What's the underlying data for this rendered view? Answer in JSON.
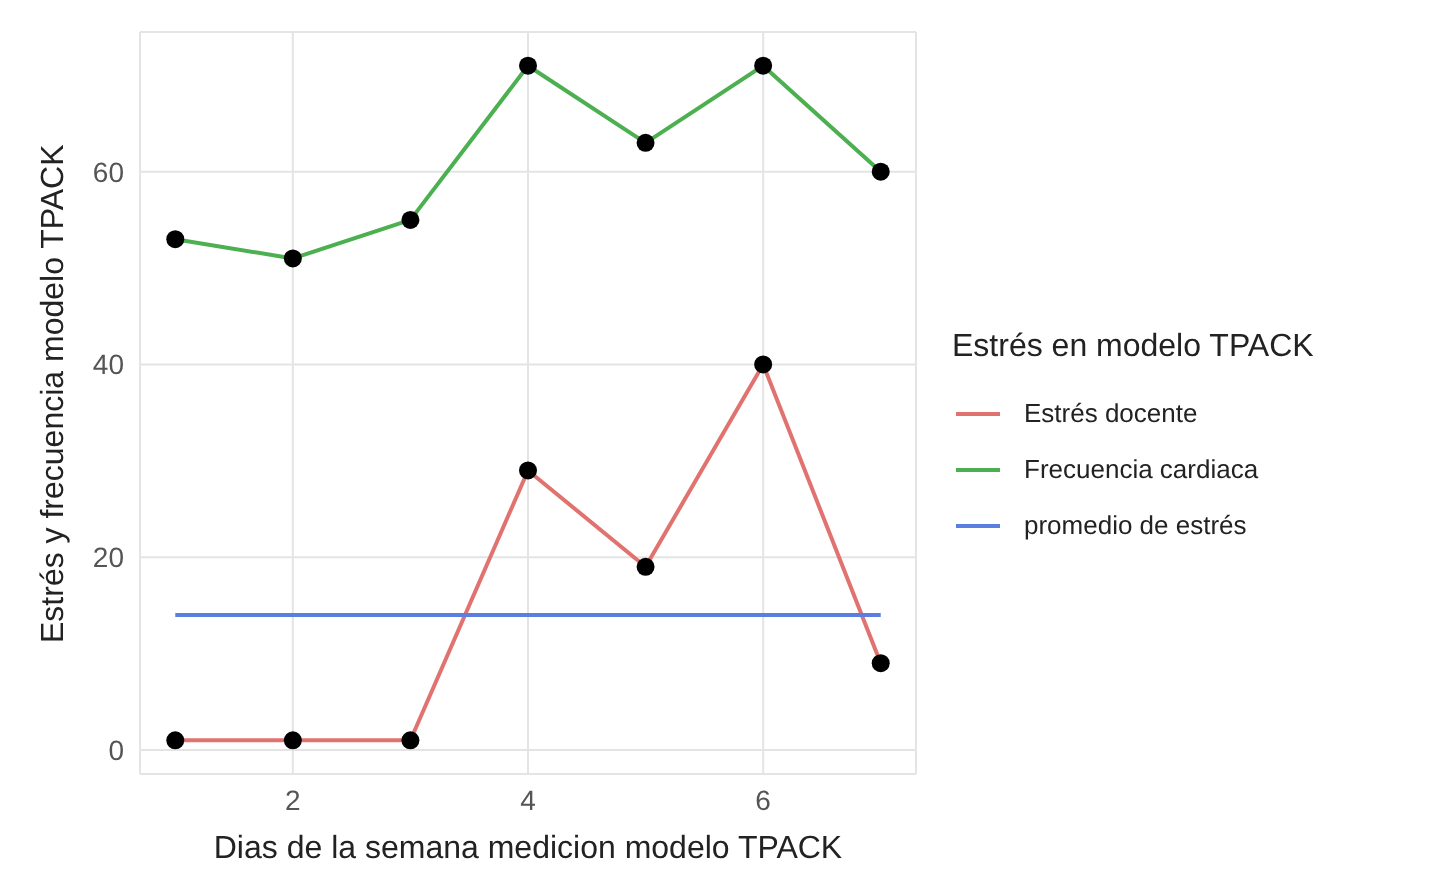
{
  "chart_data": {
    "type": "line",
    "xlabel": "Dias de la semana medicion modelo TPACK",
    "ylabel": "Estrés y frecuencia modelo TPACK",
    "legend_title": "Estrés en modelo TPACK",
    "x": [
      1,
      2,
      3,
      4,
      5,
      6,
      7
    ],
    "series": [
      {
        "name": "Estrés docente",
        "color": "#e0736f",
        "values": [
          1,
          1,
          1,
          29,
          19,
          40,
          9
        ],
        "marker": "circle"
      },
      {
        "name": "Frecuencia cardiaca",
        "color": "#4caf50",
        "values": [
          53,
          51,
          55,
          71,
          63,
          71,
          60
        ],
        "marker": "circle"
      },
      {
        "name": "promedio de estrés",
        "color": "#5b7fe0",
        "values": [
          14,
          14,
          14,
          14,
          14,
          14,
          14
        ],
        "marker": "none"
      }
    ],
    "xlim": [
      0.7,
      7.3
    ],
    "ylim": [
      -2.5,
      74.5
    ],
    "xticks": [
      2,
      4,
      6
    ],
    "yticks": [
      0,
      20,
      40,
      60
    ],
    "grid": true,
    "legend": "right"
  }
}
